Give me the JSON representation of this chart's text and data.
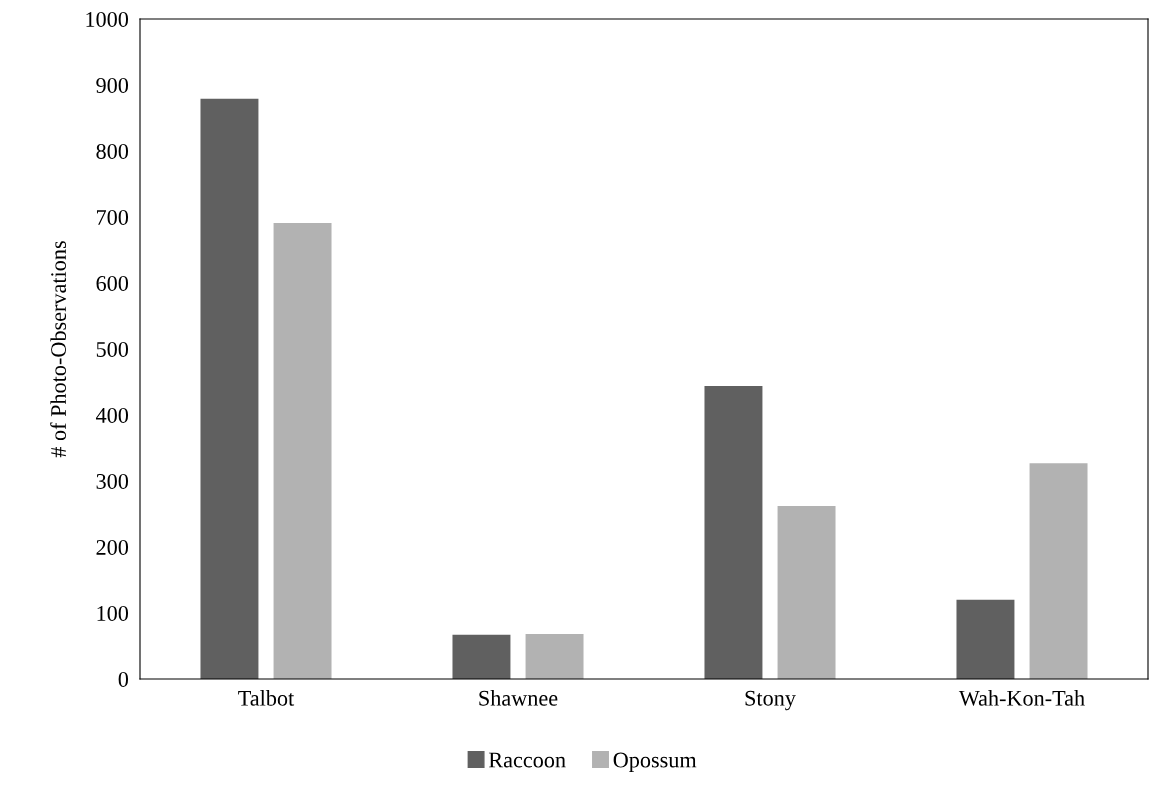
{
  "chart_data": {
    "type": "bar",
    "ylabel": "# of Photo-Observations",
    "categories": [
      "Talbot",
      "Shawnee",
      "Stony",
      "Wah-Kon-Tah"
    ],
    "series": [
      {
        "name": "Raccoon",
        "color": "#606060",
        "values": [
          879,
          67,
          444,
          120
        ]
      },
      {
        "name": "Opossum",
        "color": "#b2b2b2",
        "values": [
          691,
          68,
          262,
          327
        ]
      }
    ],
    "ylim": [
      0,
      1000
    ],
    "yticks": [
      0,
      100,
      200,
      300,
      400,
      500,
      600,
      700,
      800,
      900,
      1000
    ],
    "grid": false,
    "legend": "bottom"
  }
}
